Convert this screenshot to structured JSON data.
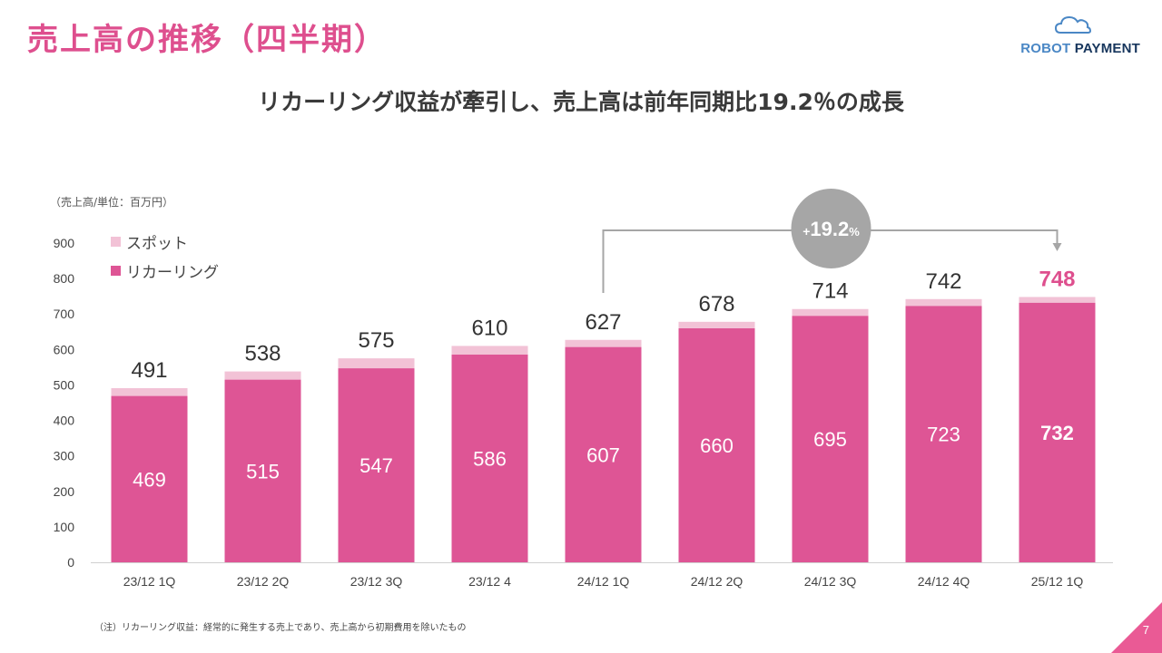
{
  "page": {
    "title": "売上高の推移（四半期）",
    "headline": "リカーリング収益が牽引し、売上高は前年同期比19.2％の成長",
    "unit_note": "（売上高/単位：百万円）",
    "footnote": "（注）リカーリング収益：経常的に発生する売上であり、売上高から初期費用を除いたもの",
    "page_number": "7",
    "logo_text": "ROBOT PAYMENT"
  },
  "colors": {
    "accent": "#de4f8e",
    "recurring": "#de5595",
    "spot": "#f2c2d6",
    "growth_circle": "#a6a6a6",
    "logo_robot": "#4a87c5",
    "logo_payment": "#17365d",
    "corner": "#ea5a95"
  },
  "icons": {
    "logo": "cloud-icon"
  },
  "chart_data": {
    "type": "bar",
    "stacked": true,
    "categories": [
      "23/12 1Q",
      "23/12 2Q",
      "23/12 3Q",
      "23/12 4",
      "24/12 1Q",
      "24/12 2Q",
      "24/12 3Q",
      "24/12 4Q",
      "25/12 1Q"
    ],
    "series": [
      {
        "name": "リカーリング",
        "values": [
          469,
          515,
          547,
          586,
          607,
          660,
          695,
          723,
          732
        ]
      },
      {
        "name": "スポット",
        "values": [
          22,
          23,
          28,
          24,
          20,
          18,
          19,
          19,
          16
        ]
      }
    ],
    "totals": [
      491,
      538,
      575,
      610,
      627,
      678,
      714,
      742,
      748
    ],
    "legend": [
      "スポット",
      "リカーリング"
    ],
    "legend_position": "top-left",
    "ylim": [
      0,
      900
    ],
    "yticks": [
      0,
      100,
      200,
      300,
      400,
      500,
      600,
      700,
      800,
      900
    ],
    "grid": false,
    "annotation": {
      "prefix": "+",
      "value": "19.2",
      "suffix": "%",
      "from_index": 4,
      "to_index": 8
    }
  }
}
